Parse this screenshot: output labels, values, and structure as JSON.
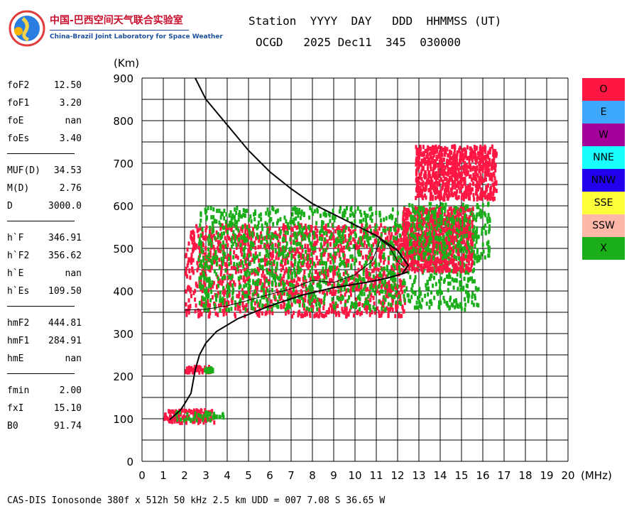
{
  "logo": {
    "title_zh": "中国-巴西空间天气联合实验室",
    "subtitle": "China-Brazil Joint Laboratory for Space Weather"
  },
  "header": {
    "labels": "Station  YYYY  DAY   DDD  HHMMSS (UT)",
    "values": "OCGD   2025 Dec11  345  030000"
  },
  "params": {
    "group1": [
      {
        "name": "foF2",
        "value": "12.50"
      },
      {
        "name": "foF1",
        "value": "3.20"
      },
      {
        "name": "foE",
        "value": "nan"
      },
      {
        "name": "foEs",
        "value": "3.40"
      }
    ],
    "group2": [
      {
        "name": "MUF(D)",
        "value": "34.53"
      },
      {
        "name": "M(D)",
        "value": "2.76"
      },
      {
        "name": "D",
        "value": "3000.0"
      }
    ],
    "group3": [
      {
        "name": "h`F",
        "value": "346.91"
      },
      {
        "name": "h`F2",
        "value": "356.62"
      },
      {
        "name": "h`E",
        "value": "nan"
      },
      {
        "name": "h`Es",
        "value": "109.50"
      }
    ],
    "group4": [
      {
        "name": "hmF2",
        "value": "444.81"
      },
      {
        "name": "hmF1",
        "value": "284.91"
      },
      {
        "name": "hmE",
        "value": "nan"
      }
    ],
    "group5": [
      {
        "name": "fmin",
        "value": "2.00"
      },
      {
        "name": "fxI",
        "value": "15.10"
      },
      {
        "name": "B0",
        "value": "91.74"
      }
    ]
  },
  "legend": [
    {
      "label": "O",
      "color": "#ff1744"
    },
    {
      "label": "E",
      "color": "#3ea8ff"
    },
    {
      "label": "W",
      "color": "#a4009a"
    },
    {
      "label": "NNE",
      "color": "#19ffff"
    },
    {
      "label": "NNW",
      "color": "#2200ee"
    },
    {
      "label": "SSE",
      "color": "#ffff3a"
    },
    {
      "label": "SSW",
      "color": "#ffb8a8"
    },
    {
      "label": "X",
      "color": "#1aae1a"
    }
  ],
  "footer": "CAS-DIS Ionosonde 380f x 512h 50 kHz 2.5 km UDD = 007 7.08 S 36.65 W",
  "chart_data": {
    "type": "scatter",
    "xlabel": "(MHz)",
    "ylabel": "(Km)",
    "xlim": [
      0,
      20
    ],
    "ylim": [
      0,
      900
    ],
    "xticks": [
      0,
      1,
      2,
      3,
      4,
      5,
      6,
      7,
      8,
      9,
      10,
      11,
      12,
      13,
      14,
      15,
      16,
      17,
      18,
      19,
      20
    ],
    "yticks": [
      0,
      100,
      200,
      300,
      400,
      500,
      600,
      700,
      800,
      900
    ],
    "grid": true,
    "echo_regions": [
      {
        "polarization": "O",
        "freq_range": [
          1.0,
          3.4
        ],
        "height_range": [
          95,
          125
        ]
      },
      {
        "polarization": "X",
        "freq_range": [
          1.5,
          3.8
        ],
        "height_range": [
          100,
          120
        ]
      },
      {
        "polarization": "O",
        "freq_range": [
          2.0,
          3.2
        ],
        "height_range": [
          213,
          227
        ]
      },
      {
        "polarization": "X",
        "freq_range": [
          2.9,
          3.3
        ],
        "height_range": [
          215,
          224
        ]
      },
      {
        "polarization": "O",
        "freq_range": [
          2.0,
          12.3
        ],
        "height_range": [
          345,
          560
        ]
      },
      {
        "polarization": "X",
        "freq_range": [
          2.6,
          15.8
        ],
        "height_range": [
          360,
          600
        ]
      },
      {
        "polarization": "O",
        "freq_range": [
          12.2,
          15.5
        ],
        "height_range": [
          450,
          600
        ]
      },
      {
        "polarization": "X",
        "freq_range": [
          12.5,
          16.3
        ],
        "height_range": [
          480,
          610
        ]
      },
      {
        "polarization": "O",
        "freq_range": [
          12.8,
          16.6
        ],
        "height_range": [
          620,
          745
        ]
      }
    ],
    "lines": [
      {
        "name": "virtual_height_trace",
        "points": [
          [
            1.3,
            98
          ],
          [
            1.8,
            120
          ],
          [
            2.0,
            135
          ],
          [
            2.3,
            160
          ],
          [
            2.5,
            215
          ],
          [
            2.7,
            250
          ],
          [
            3.0,
            278
          ],
          [
            3.5,
            305
          ],
          [
            4.5,
            335
          ],
          [
            6,
            365
          ],
          [
            7.5,
            390
          ],
          [
            9,
            408
          ],
          [
            10.5,
            420
          ],
          [
            11.5,
            430
          ],
          [
            12.2,
            440
          ],
          [
            12.5,
            445
          ]
        ]
      },
      {
        "name": "true_height_profile",
        "points": [
          [
            2.5,
            900
          ],
          [
            3,
            850
          ],
          [
            4,
            790
          ],
          [
            5,
            730
          ],
          [
            6,
            680
          ],
          [
            7,
            640
          ],
          [
            8,
            605
          ],
          [
            9,
            580
          ],
          [
            10,
            555
          ],
          [
            11,
            530
          ],
          [
            12,
            495
          ],
          [
            12.5,
            460
          ],
          [
            12.2,
            440
          ]
        ]
      },
      {
        "name": "model_fit",
        "points": [
          [
            2.0,
            355
          ],
          [
            3,
            357
          ],
          [
            4,
            365
          ],
          [
            5,
            378
          ],
          [
            6,
            392
          ],
          [
            7,
            405
          ],
          [
            8,
            425
          ],
          [
            9,
            420
          ],
          [
            10,
            438
          ],
          [
            10.8,
            470
          ],
          [
            11.2,
            520
          ],
          [
            11.6,
            505
          ],
          [
            12,
            470
          ],
          [
            12.3,
            455
          ]
        ]
      }
    ]
  }
}
